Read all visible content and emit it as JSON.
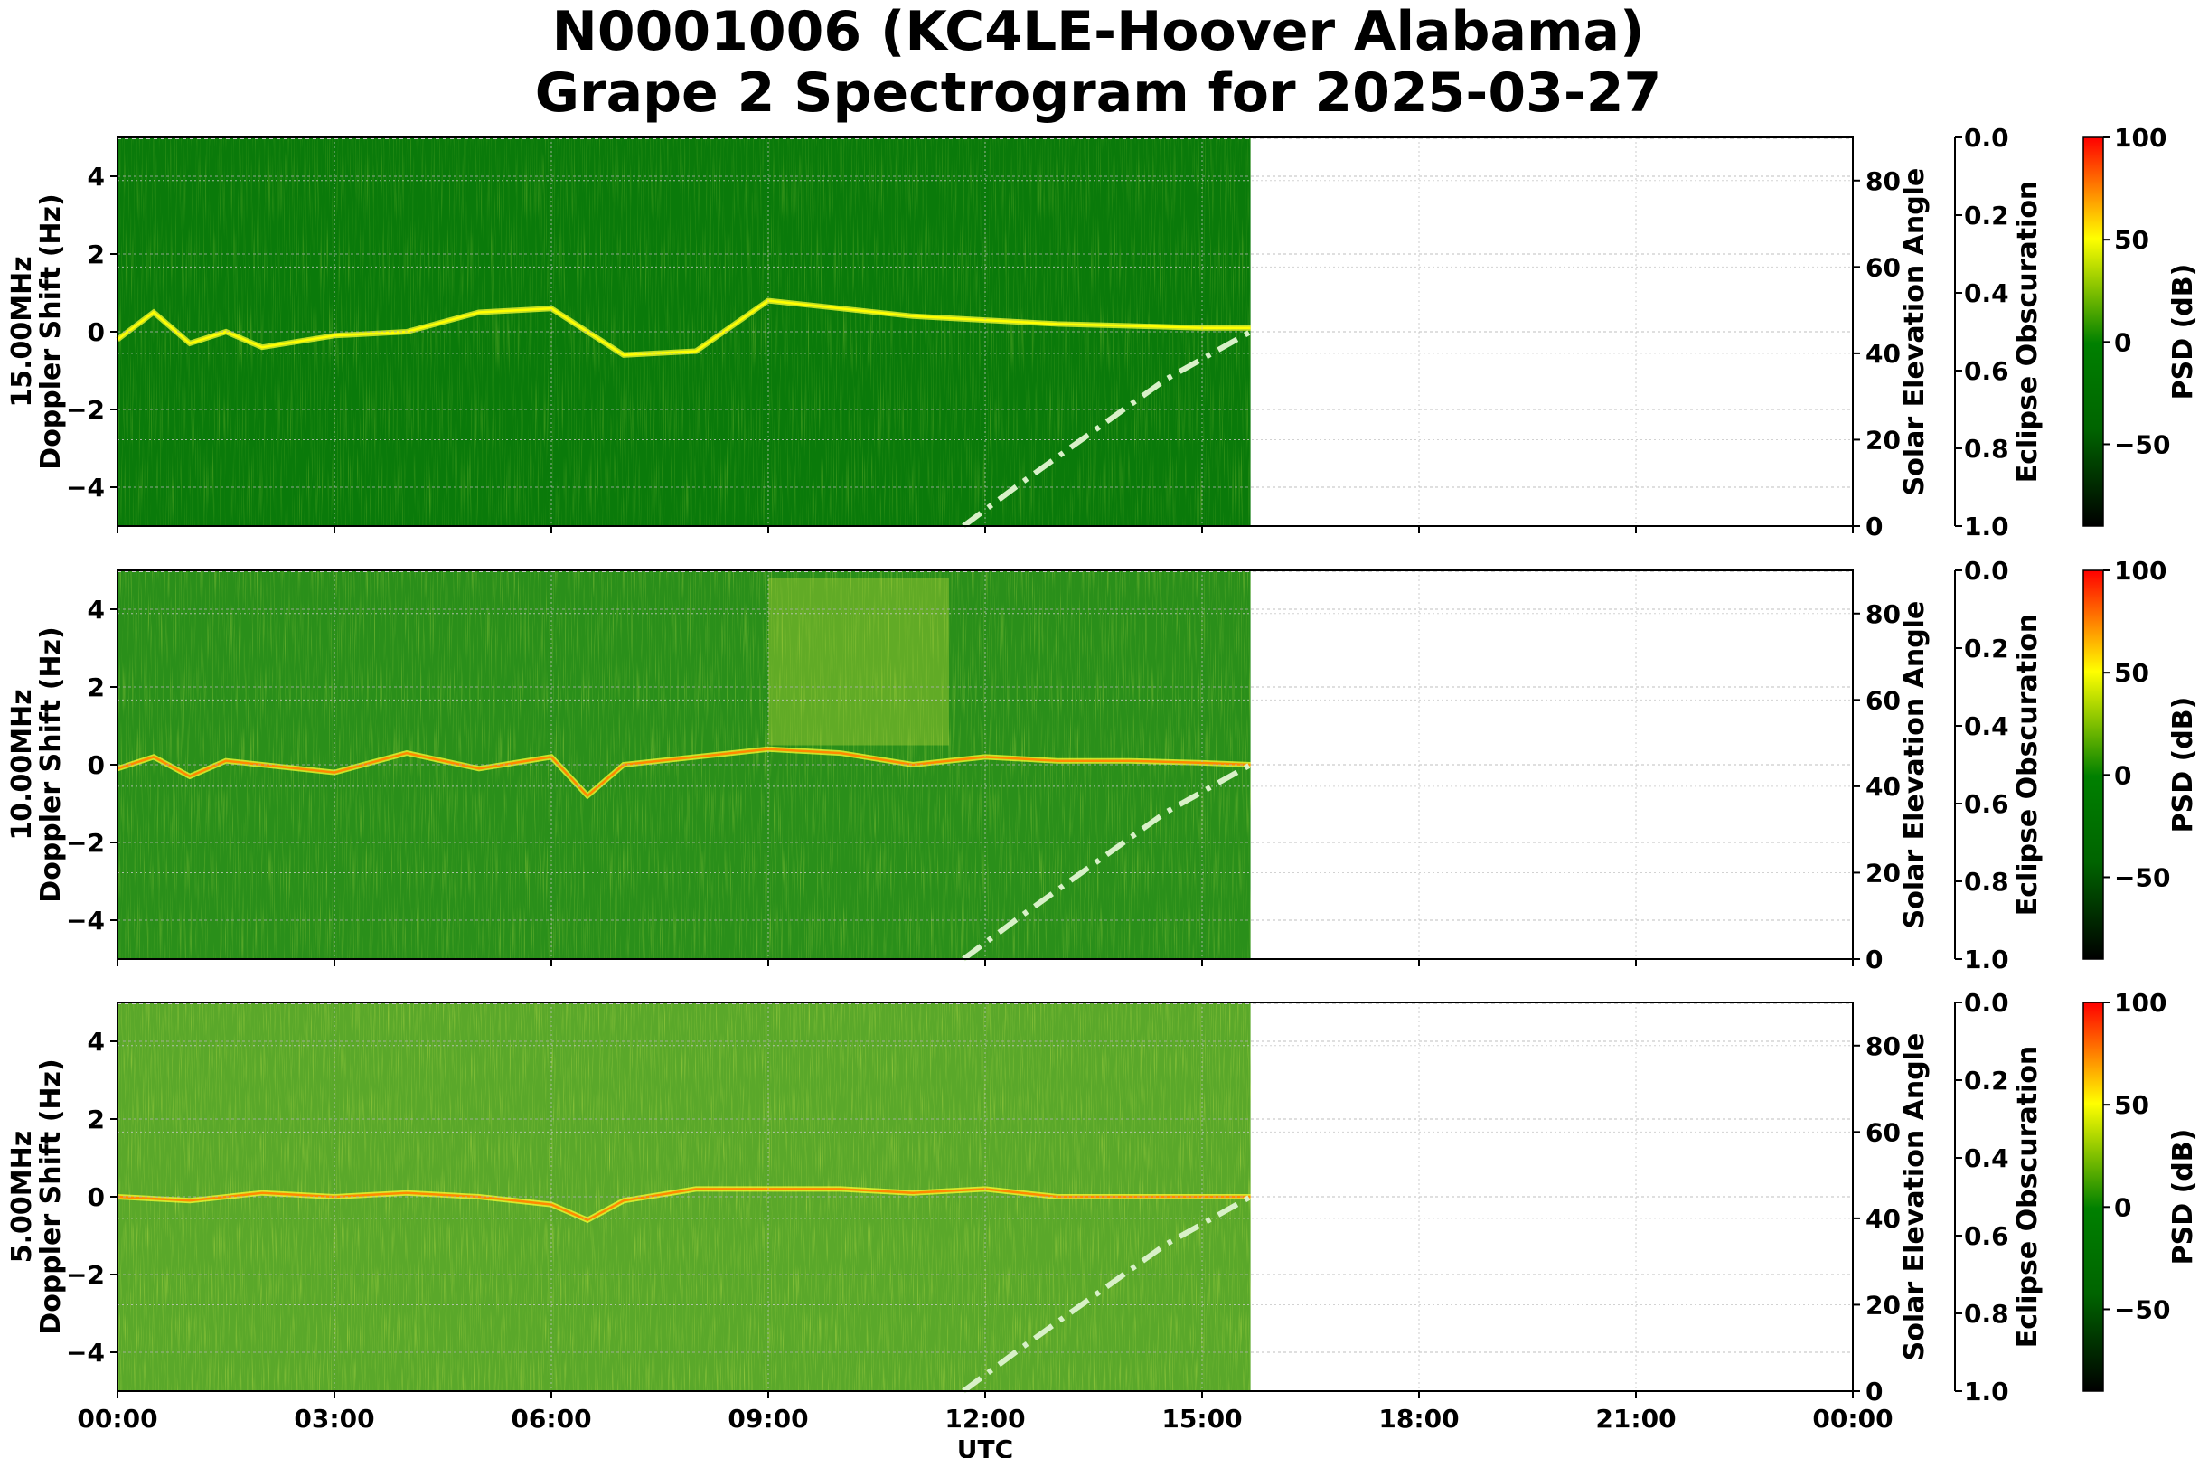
{
  "title_line1": "N0001006 (KC4LE-Hoover Alabama)",
  "title_line2": "Grape 2 Spectrogram for 2025-03-27",
  "chart_data": {
    "type": "heatmap",
    "x_label": "UTC",
    "x_ticks": [
      "00:00",
      "03:00",
      "06:00",
      "09:00",
      "12:00",
      "15:00",
      "18:00",
      "21:00",
      "00:00"
    ],
    "xlim_hours": [
      0,
      24
    ],
    "data_end_hour": 15.67,
    "y_label": "Doppler Shift (Hz)",
    "ylim": [
      -5,
      5
    ],
    "y_ticks": [
      -4,
      -2,
      0,
      2,
      4
    ],
    "y_tick_labels": [
      "−4",
      "−2",
      "0",
      "2",
      "4"
    ],
    "right_axis_label": "Solar Elevation Angle",
    "right_ylim": [
      0,
      90
    ],
    "right_ticks": [
      0,
      20,
      40,
      60,
      80
    ],
    "eclipse_label": "Eclipse Obscuration",
    "eclipse_ticks": [
      "0.0",
      "0.2",
      "0.4",
      "0.6",
      "0.8",
      "1.0"
    ],
    "colorbar_label": "PSD (dB)",
    "colorbar_range": [
      -90,
      100
    ],
    "colorbar_ticks": [
      100,
      50,
      0,
      -50
    ],
    "colorbar_tick_labels": [
      "100",
      "50",
      "0",
      "−50"
    ],
    "colorbar_colors": [
      "#000000",
      "#006400",
      "#008000",
      "#ffff00",
      "#ff0000"
    ],
    "solar_elevation_curve": {
      "style": "dash-dot",
      "color": "#d8f0c8",
      "hours": [
        11.7,
        12.5,
        13.5,
        14.5,
        15.67
      ],
      "degrees": [
        0,
        10,
        22,
        34,
        45
      ]
    },
    "panels": [
      {
        "name": "15.00MHz",
        "background_color": "#0a7a0a",
        "doppler_trace_hours": [
          0,
          0.5,
          1,
          1.5,
          2,
          3,
          4,
          5,
          6,
          7,
          8,
          9,
          10,
          11,
          12,
          13,
          14,
          15,
          15.67
        ],
        "doppler_trace_hz": [
          -0.2,
          0.5,
          -0.3,
          0.0,
          -0.4,
          -0.1,
          0.0,
          0.5,
          0.6,
          -0.6,
          -0.5,
          0.8,
          0.6,
          0.4,
          0.3,
          0.2,
          0.15,
          0.1,
          0.1
        ]
      },
      {
        "name": "10.00MHz",
        "background_color": "#2a8f1a",
        "doppler_trace_hours": [
          0,
          0.5,
          1,
          1.5,
          2,
          3,
          4,
          5,
          6,
          6.5,
          7,
          8,
          9,
          10,
          11,
          12,
          13,
          14,
          15,
          15.67
        ],
        "doppler_trace_hz": [
          -0.1,
          0.2,
          -0.3,
          0.1,
          0.0,
          -0.2,
          0.3,
          -0.1,
          0.2,
          -0.8,
          0.0,
          0.2,
          0.4,
          0.3,
          0.0,
          0.2,
          0.1,
          0.1,
          0.05,
          0.0
        ],
        "bright_region_hours": [
          9.0,
          11.5
        ],
        "bright_region_hz": [
          0.5,
          4.8
        ]
      },
      {
        "name": "5.00MHz",
        "background_color": "#5aa82a",
        "doppler_trace_hours": [
          0,
          1,
          2,
          3,
          4,
          5,
          6,
          6.5,
          7,
          8,
          9,
          10,
          11,
          12,
          13,
          14,
          15,
          15.67
        ],
        "doppler_trace_hz": [
          0.0,
          -0.1,
          0.1,
          0.0,
          0.1,
          0.0,
          -0.2,
          -0.6,
          -0.1,
          0.2,
          0.2,
          0.2,
          0.1,
          0.2,
          0.0,
          0.0,
          0.0,
          0.0
        ]
      }
    ]
  }
}
